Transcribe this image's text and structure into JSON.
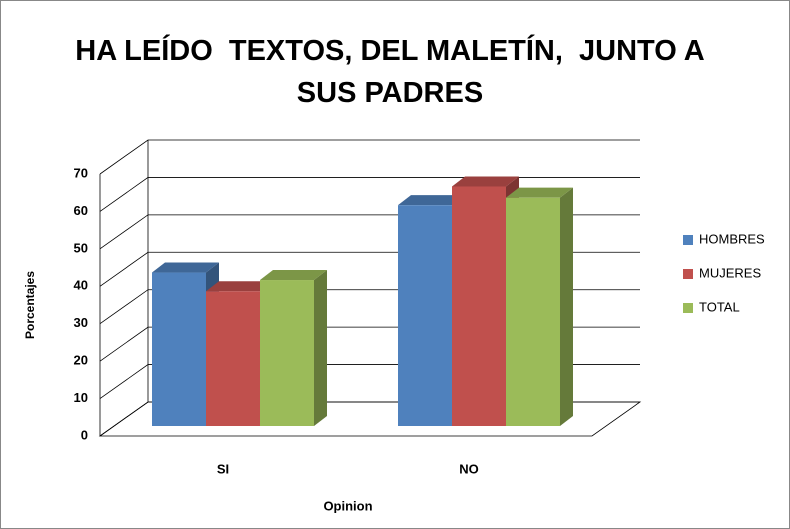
{
  "chart_data": {
    "type": "bar",
    "title": "HA LEÍDO  TEXTOS, DEL MALETÍN,  JUNTO A SUS PADRES",
    "x_label": "Opinion",
    "y_label": "Porcentajes",
    "categories": [
      "SI",
      "NO"
    ],
    "series": [
      {
        "name": "HOMBRES",
        "color": "#4f81bd",
        "values": [
          41,
          59
        ]
      },
      {
        "name": "MUJERES",
        "color": "#c0504d",
        "values": [
          36,
          64
        ]
      },
      {
        "name": "TOTAL",
        "color": "#9bbb59",
        "values": [
          39,
          61
        ]
      }
    ],
    "ylim": [
      0,
      70
    ],
    "yticks": [
      0,
      10,
      20,
      30,
      40,
      50,
      60,
      70
    ],
    "grid": true,
    "legend": "right"
  }
}
